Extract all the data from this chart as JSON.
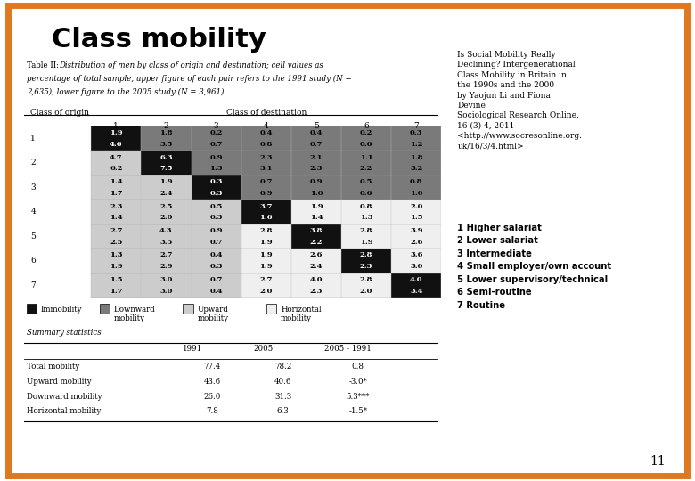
{
  "title": "Class mobility",
  "table_caption_prefix": "Table II:  ",
  "table_caption_italic": "Distribution of men by class of origin and destination; cell values as\npercentage of total sample, upper figure of each pair refers to the 1991 study (N =\n2,635), lower figure to the 2005 study (N = 3,961)",
  "col_header": "Class of destination",
  "row_header": "Class of origin",
  "col_labels": [
    "1",
    "2",
    "3",
    "4",
    "5",
    "6",
    "7"
  ],
  "row_labels": [
    "1",
    "2",
    "3",
    "4",
    "5",
    "6",
    "7"
  ],
  "data_1991": [
    [
      1.9,
      1.8,
      0.2,
      0.4,
      0.4,
      0.2,
      0.3
    ],
    [
      4.7,
      6.3,
      0.9,
      2.3,
      2.1,
      1.1,
      1.8
    ],
    [
      1.4,
      1.9,
      0.3,
      0.7,
      0.9,
      0.5,
      0.8
    ],
    [
      2.3,
      2.5,
      0.5,
      3.7,
      1.9,
      0.8,
      2.0
    ],
    [
      2.7,
      4.3,
      0.9,
      2.8,
      3.8,
      2.8,
      3.9
    ],
    [
      1.3,
      2.7,
      0.4,
      1.9,
      2.6,
      2.8,
      3.6
    ],
    [
      1.5,
      3.0,
      0.7,
      2.7,
      4.0,
      2.8,
      4.0
    ]
  ],
  "data_2005": [
    [
      4.6,
      3.5,
      0.7,
      0.8,
      0.7,
      0.6,
      1.2
    ],
    [
      6.2,
      7.5,
      1.3,
      3.1,
      2.3,
      2.2,
      3.2
    ],
    [
      1.7,
      2.4,
      0.3,
      0.9,
      1.0,
      0.6,
      1.0
    ],
    [
      1.4,
      2.0,
      0.3,
      1.6,
      1.4,
      1.3,
      1.5
    ],
    [
      2.5,
      3.5,
      0.7,
      1.9,
      2.2,
      1.9,
      2.6
    ],
    [
      1.9,
      2.9,
      0.3,
      1.9,
      2.4,
      2.3,
      3.0
    ],
    [
      1.7,
      3.0,
      0.4,
      2.0,
      2.3,
      2.0,
      3.4
    ]
  ],
  "cell_types": [
    [
      "immobility",
      "downward",
      "downward",
      "downward",
      "downward",
      "downward",
      "downward"
    ],
    [
      "upward",
      "immobility",
      "downward",
      "downward",
      "downward",
      "downward",
      "downward"
    ],
    [
      "upward",
      "upward",
      "immobility",
      "downward",
      "downward",
      "downward",
      "downward"
    ],
    [
      "upward",
      "upward",
      "upward",
      "immobility",
      "horizontal",
      "horizontal",
      "horizontal"
    ],
    [
      "upward",
      "upward",
      "upward",
      "horizontal",
      "immobility",
      "horizontal",
      "horizontal"
    ],
    [
      "upward",
      "upward",
      "upward",
      "horizontal",
      "horizontal",
      "immobility",
      "horizontal"
    ],
    [
      "upward",
      "upward",
      "upward",
      "horizontal",
      "horizontal",
      "horizontal",
      "immobility"
    ]
  ],
  "colors": {
    "immobility": "#111111",
    "downward": "#7a7a7a",
    "upward": "#cccccc",
    "horizontal": "#efefef",
    "text_on_dark": "#ffffff",
    "text_on_light": "#000000"
  },
  "legend_colors": [
    "#111111",
    "#7a7a7a",
    "#cccccc",
    "#efefef"
  ],
  "legend_labels": [
    "Immobility",
    "Downward\nmobility",
    "Upward\nmobility",
    "Horizontal\nmobility"
  ],
  "summary_stats_rows": [
    [
      "Total mobility",
      "77.4",
      "78.2",
      "0.8"
    ],
    [
      "Upward mobility",
      "43.6",
      "40.6",
      "-3.0*"
    ],
    [
      "Downward mobility",
      "26.0",
      "31.3",
      "5.3***"
    ],
    [
      "Horizontal mobility",
      "7.8",
      "6.3",
      "-1.5*"
    ]
  ],
  "right_text": "Is Social Mobility Really\nDeclining? Intergenerational\nClass Mobility in Britain in\nthe 1990s and the 2000\nby Yaojun Li and Fiona\nDevine\nSociological Research Online,\n16 (3) 4, 2011\n<http://www.socresonline.org.\nuk/16/3/4.html>",
  "class_labels": [
    "1 Higher salariat",
    "2 Lower salariat",
    "3 Intermediate",
    "4 Small employer/own account",
    "5 Lower supervisory/technical",
    "6 Semi-routine",
    "7 Routine"
  ],
  "slide_number": "11",
  "bg_color": "#ffffff",
  "border_color": "#e07820"
}
